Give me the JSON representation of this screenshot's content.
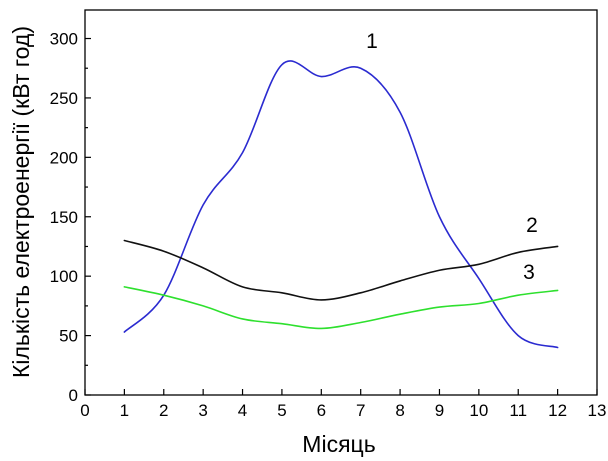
{
  "chart_data": {
    "type": "line",
    "xlabel": "Місяць",
    "ylabel": "Кількість електроенергії (кВт год)",
    "xlim": [
      0,
      13
    ],
    "ylim": [
      0,
      324
    ],
    "xticks": [
      0,
      1,
      2,
      3,
      4,
      5,
      6,
      7,
      8,
      9,
      10,
      11,
      12,
      13
    ],
    "yticks": [
      0,
      50,
      100,
      150,
      200,
      250,
      300
    ],
    "grid": false,
    "x": [
      1,
      2,
      3,
      4,
      5,
      6,
      7,
      8,
      9,
      10,
      11,
      12
    ],
    "series": [
      {
        "name": "1",
        "color": "#2b2bd0",
        "values": [
          53,
          84,
          160,
          204,
          278,
          268,
          275,
          238,
          150,
          98,
          50,
          40
        ]
      },
      {
        "name": "2",
        "color": "#111111",
        "values": [
          130,
          121,
          107,
          91,
          86,
          80,
          86,
          96,
          105,
          110,
          120,
          125
        ]
      },
      {
        "name": "3",
        "color": "#2ee02e",
        "values": [
          91,
          84,
          75,
          64,
          60,
          56,
          61,
          68,
          74,
          77,
          84,
          88
        ]
      }
    ]
  }
}
